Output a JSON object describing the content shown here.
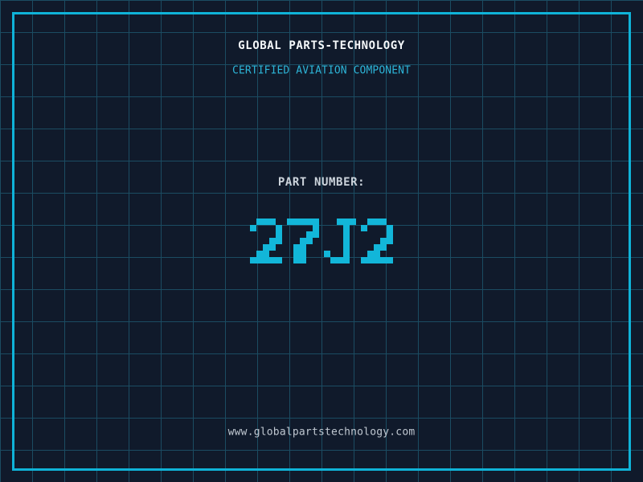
{
  "theme": {
    "background_color": "#101a2b",
    "grid_line_color": "#1b4c62",
    "frame_color": "#0fb3d8",
    "title_color": "#f5f8fa",
    "subtitle_color": "#2db5d8",
    "label_color": "#cbd3db",
    "part_number_color": "#12b6d9",
    "url_color": "#c0c8d1"
  },
  "header": {
    "title": "GLOBAL PARTS-TECHNOLOGY",
    "subtitle": "CERTIFIED AVIATION COMPONENT"
  },
  "part": {
    "label": "PART NUMBER:",
    "number": "27J2"
  },
  "footer": {
    "url": "www.globalpartstechnology.com"
  }
}
